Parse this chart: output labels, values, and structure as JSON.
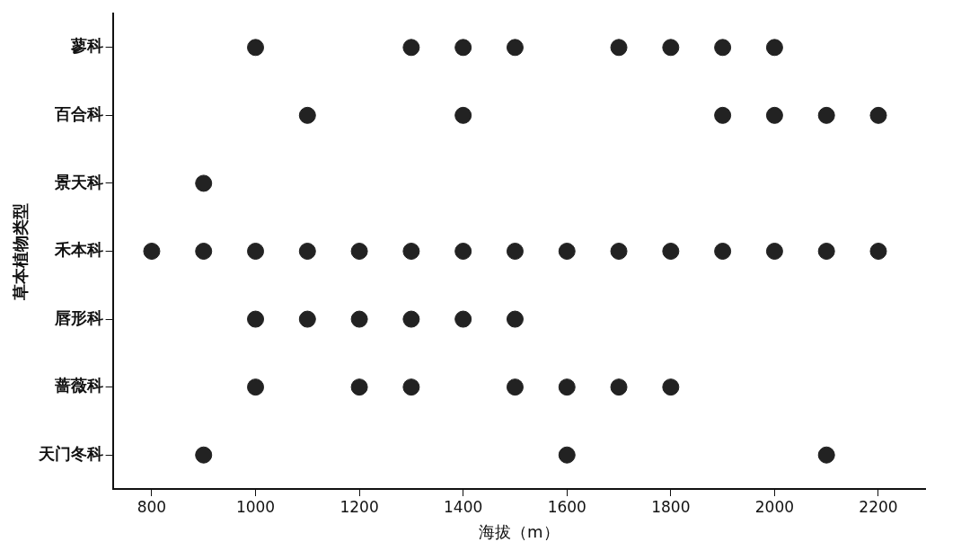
{
  "chart_data": {
    "type": "scatter",
    "orientation": "horizontal",
    "xlabel": "海拔（m）",
    "ylabel": "草本植物类型",
    "categories": [
      "蓼科",
      "百合科",
      "景天科",
      "禾本科",
      "唇形科",
      "蔷薇科",
      "天门冬科"
    ],
    "series": [
      {
        "color": "#222222",
        "values": [
          null,
          null,
          null,
          800,
          null,
          null,
          null
        ]
      },
      {
        "color": "#222222",
        "values": [
          null,
          null,
          900,
          900,
          null,
          null,
          900
        ]
      },
      {
        "color": "#222222",
        "values": [
          1000,
          null,
          null,
          1000,
          1000,
          1000,
          null
        ]
      },
      {
        "color": "#222222",
        "values": [
          null,
          1100,
          null,
          1100,
          1100,
          null,
          null
        ]
      },
      {
        "color": "#222222",
        "values": [
          null,
          null,
          null,
          1200,
          1200,
          1200,
          null
        ]
      },
      {
        "color": "#222222",
        "values": [
          1300,
          null,
          null,
          1300,
          1300,
          1300,
          null
        ]
      },
      {
        "color": "#222222",
        "values": [
          1400,
          1400,
          null,
          1400,
          1400,
          null,
          null
        ]
      },
      {
        "color": "#222222",
        "values": [
          1500,
          null,
          null,
          1500,
          1500,
          1500,
          null
        ]
      },
      {
        "color": "#222222",
        "values": [
          null,
          null,
          null,
          1600,
          null,
          1600,
          1600
        ]
      },
      {
        "color": "#222222",
        "values": [
          1700,
          null,
          null,
          1700,
          null,
          1700,
          null
        ]
      },
      {
        "color": "#222222",
        "values": [
          1800,
          null,
          null,
          1800,
          null,
          1800,
          null
        ]
      },
      {
        "color": "#222222",
        "values": [
          1900,
          1900,
          null,
          1900,
          null,
          null,
          null
        ]
      },
      {
        "color": "#222222",
        "values": [
          2000,
          2000,
          null,
          2000,
          null,
          null,
          null
        ]
      },
      {
        "color": "#222222",
        "values": [
          null,
          2100,
          null,
          2100,
          null,
          null,
          2100
        ]
      },
      {
        "color": "#222222",
        "values": [
          null,
          2200,
          null,
          2200,
          null,
          null,
          null
        ]
      }
    ],
    "xlim": [
      725,
      2290
    ],
    "xticks": [
      800,
      1000,
      1200,
      1400,
      1600,
      1800,
      2000,
      2200
    ],
    "marker": "circle",
    "grid": false,
    "legend": false
  }
}
